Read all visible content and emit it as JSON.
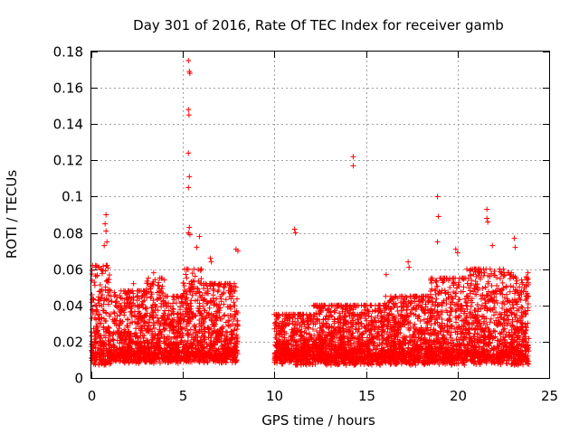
{
  "chart_data": {
    "type": "scatter",
    "title": "Day 301 of 2016, Rate Of TEC Index for receiver gamb",
    "xlabel": "GPS time / hours",
    "ylabel": "ROTI / TECUs",
    "xlim": [
      0,
      25
    ],
    "ylim": [
      0,
      0.18
    ],
    "xticks": [
      0,
      5,
      10,
      15,
      20,
      25
    ],
    "xtick_labels": [
      "0",
      "5",
      "10",
      "15",
      "20",
      "25"
    ],
    "yticks": [
      0,
      0.02,
      0.04,
      0.06,
      0.08,
      0.1,
      0.12,
      0.14,
      0.16,
      0.18
    ],
    "ytick_labels": [
      "0",
      "0.02",
      "0.04",
      "0.06",
      "0.08",
      "0.1",
      "0.12",
      "0.14",
      "0.16",
      "0.18"
    ],
    "grid": true,
    "marker": "+",
    "marker_color": "#ff0000",
    "series": [
      {
        "name": "ROTI",
        "data_gap_hours": [
          8.0,
          10.0
        ],
        "outliers": [
          [
            5.3,
            0.175
          ],
          [
            5.35,
            0.169
          ],
          [
            5.38,
            0.168
          ],
          [
            5.3,
            0.148
          ],
          [
            5.33,
            0.145
          ],
          [
            5.3,
            0.124
          ],
          [
            5.35,
            0.111
          ],
          [
            5.3,
            0.105
          ],
          [
            5.35,
            0.083
          ],
          [
            5.3,
            0.08
          ],
          [
            5.38,
            0.079
          ],
          [
            5.9,
            0.078
          ],
          [
            5.75,
            0.072
          ],
          [
            0.8,
            0.09
          ],
          [
            0.75,
            0.085
          ],
          [
            0.8,
            0.081
          ],
          [
            0.85,
            0.075
          ],
          [
            0.7,
            0.073
          ],
          [
            7.9,
            0.071
          ],
          [
            8.0,
            0.07
          ],
          [
            6.5,
            0.066
          ],
          [
            6.55,
            0.064
          ],
          [
            11.1,
            0.082
          ],
          [
            11.15,
            0.08
          ],
          [
            14.3,
            0.122
          ],
          [
            14.3,
            0.117
          ],
          [
            18.9,
            0.1
          ],
          [
            18.95,
            0.089
          ],
          [
            18.9,
            0.075
          ],
          [
            21.6,
            0.093
          ],
          [
            21.6,
            0.088
          ],
          [
            21.65,
            0.086
          ],
          [
            19.9,
            0.071
          ],
          [
            20.0,
            0.069
          ],
          [
            21.9,
            0.073
          ],
          [
            23.1,
            0.077
          ],
          [
            23.15,
            0.072
          ],
          [
            16.1,
            0.057
          ],
          [
            17.3,
            0.064
          ],
          [
            17.35,
            0.061
          ],
          [
            3.4,
            0.058
          ],
          [
            2.3,
            0.052
          ],
          [
            9.99,
            0.035
          ]
        ],
        "bands": [
          {
            "x_start": 0.0,
            "x_end": 1.0,
            "y_base": 0.003,
            "y_top": 0.062
          },
          {
            "x_start": 1.0,
            "x_end": 3.0,
            "y_base": 0.004,
            "y_top": 0.048
          },
          {
            "x_start": 3.0,
            "x_end": 4.0,
            "y_base": 0.004,
            "y_top": 0.055
          },
          {
            "x_start": 4.0,
            "x_end": 5.0,
            "y_base": 0.004,
            "y_top": 0.045
          },
          {
            "x_start": 5.0,
            "x_end": 6.0,
            "y_base": 0.004,
            "y_top": 0.06
          },
          {
            "x_start": 6.0,
            "x_end": 8.0,
            "y_base": 0.004,
            "y_top": 0.052
          },
          {
            "x_start": 10.0,
            "x_end": 12.0,
            "y_base": 0.003,
            "y_top": 0.035
          },
          {
            "x_start": 12.0,
            "x_end": 16.0,
            "y_base": 0.003,
            "y_top": 0.04
          },
          {
            "x_start": 16.0,
            "x_end": 18.5,
            "y_base": 0.003,
            "y_top": 0.045
          },
          {
            "x_start": 18.5,
            "x_end": 20.5,
            "y_base": 0.003,
            "y_top": 0.055
          },
          {
            "x_start": 20.5,
            "x_end": 22.5,
            "y_base": 0.003,
            "y_top": 0.06
          },
          {
            "x_start": 22.5,
            "x_end": 23.9,
            "y_base": 0.003,
            "y_top": 0.058
          }
        ]
      }
    ]
  }
}
